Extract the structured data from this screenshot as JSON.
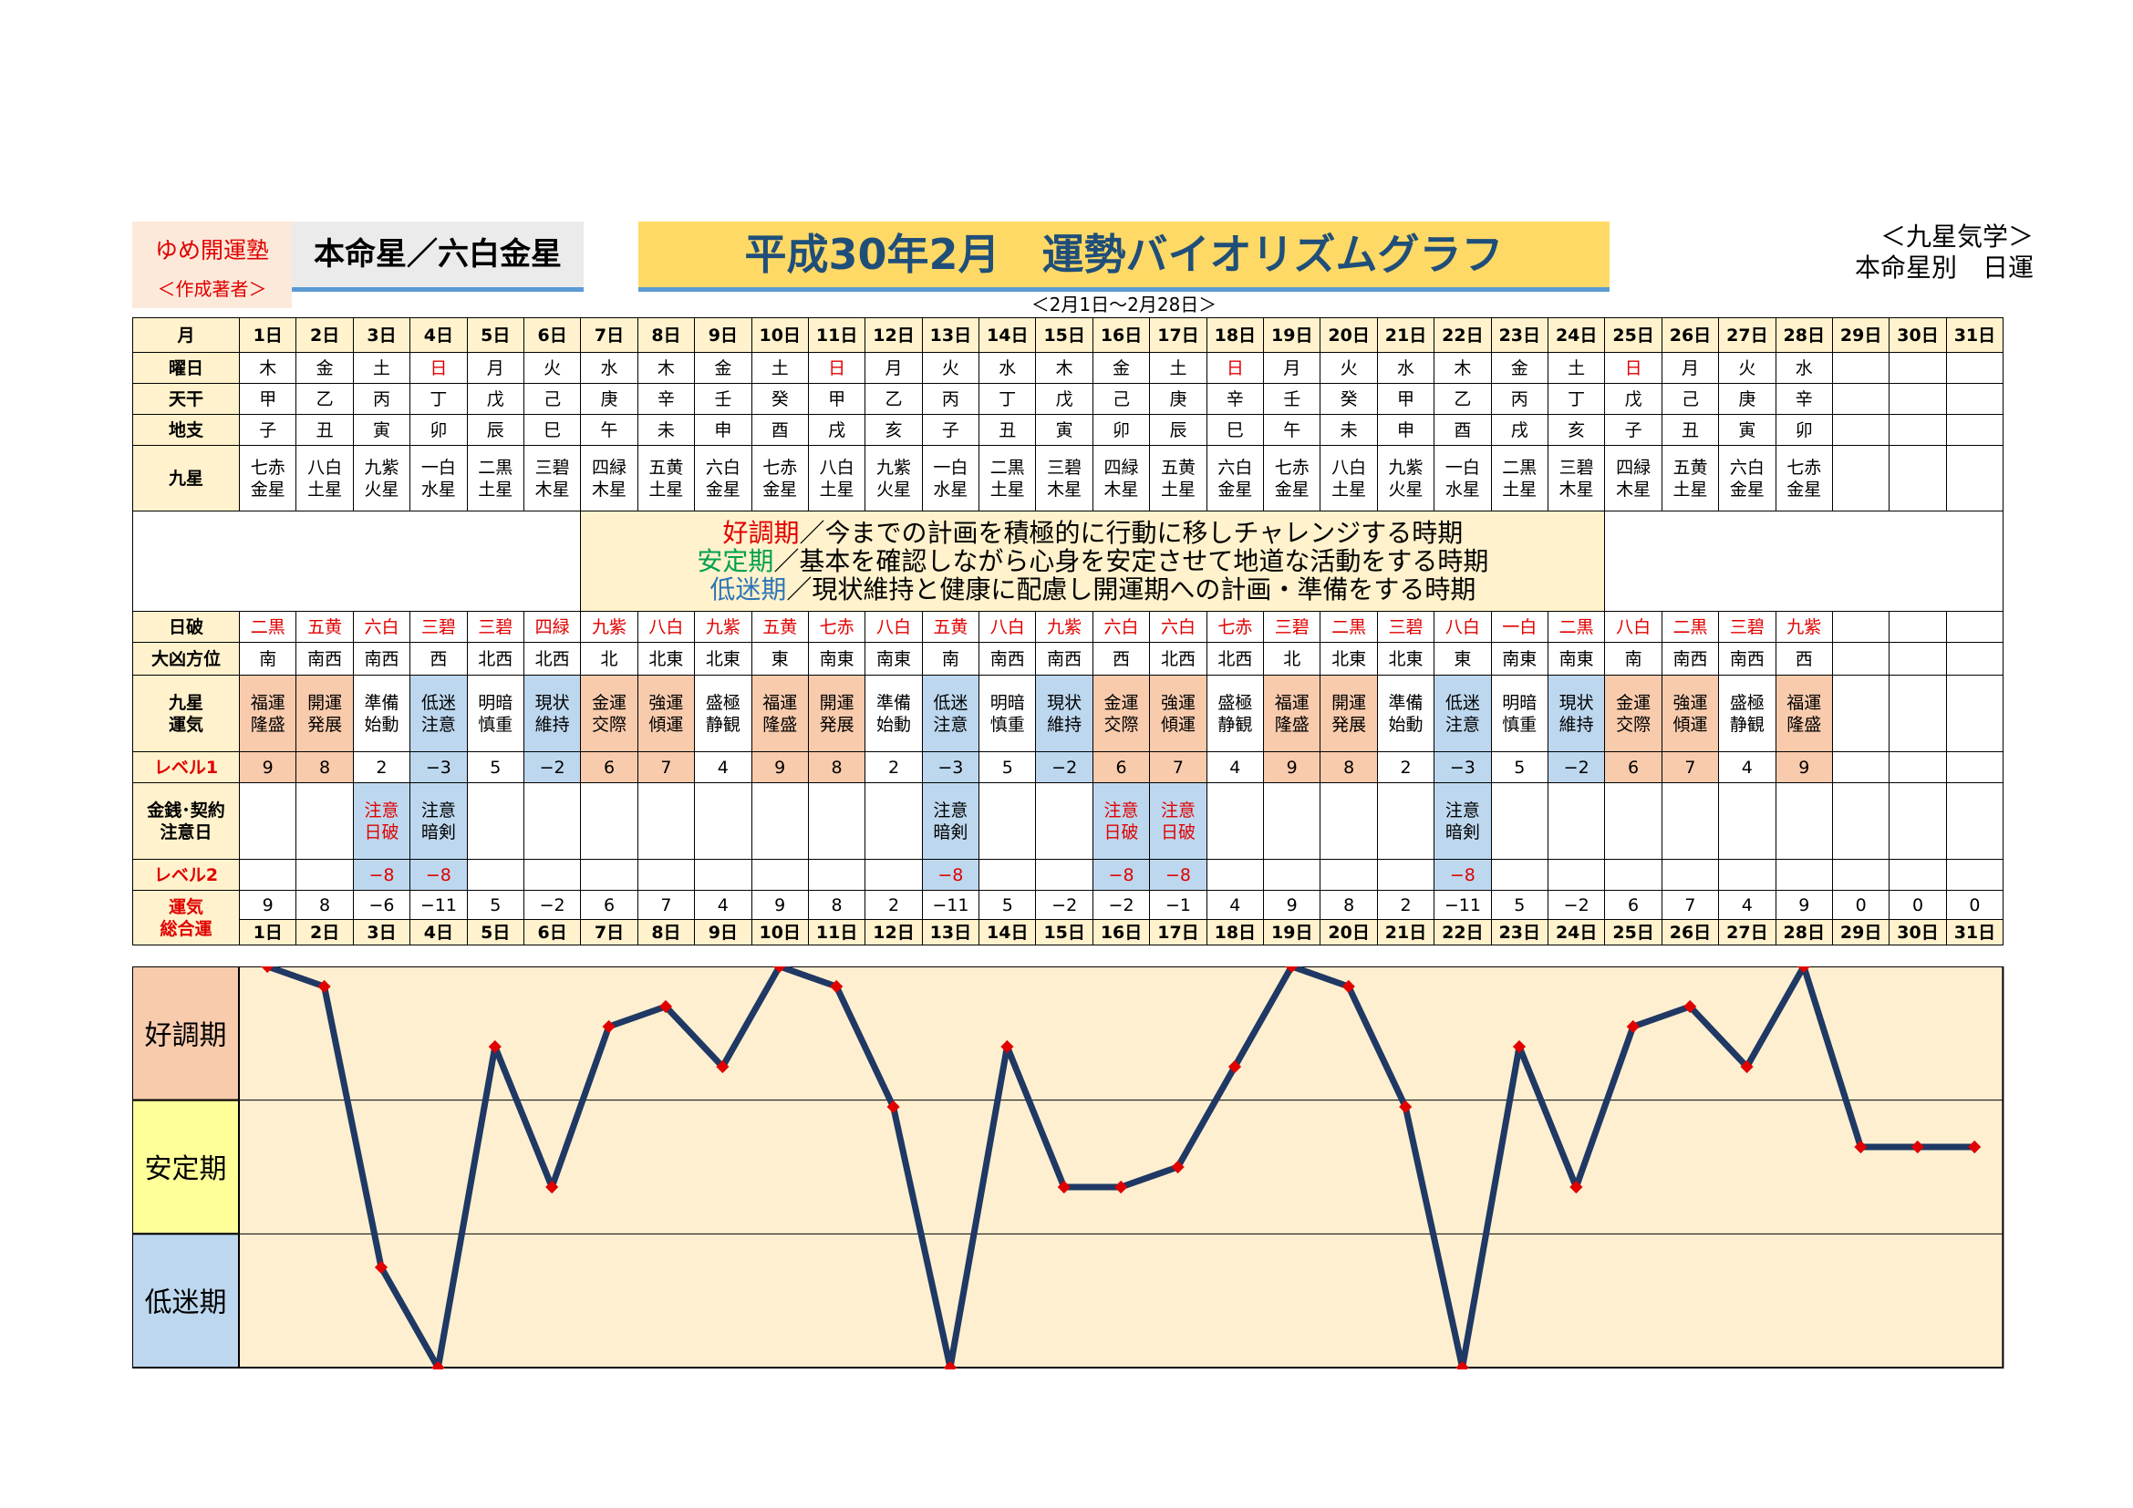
{
  "header": {
    "brand_line1": "ゆめ開運塾",
    "brand_line2": "＜作成著者＞",
    "honmei": "本命星／六白金星",
    "title": "平成30年2月　運勢バイオリズムグラフ",
    "date_range": "＜2月1日～2月28日＞",
    "kyusei_line1": "＜九星気学＞",
    "kyusei_line2": "本命星別　日運"
  },
  "row_labels": {
    "month": "月",
    "weekday": "曜日",
    "tenkan": "天干",
    "chishi": "地支",
    "kyusei": "九星",
    "nippa": "日破",
    "daikyo": "大凶方位",
    "unki": "九星\n運気",
    "level1": "レベル1",
    "kinsen": "金銭･契約\n注意日",
    "level2": "レベル2",
    "sogo": "運気\n総合運"
  },
  "legend": [
    {
      "key": "好調期",
      "text": "／今までの計画を積極的に行動に移しチャレンジする時期",
      "tone": "good"
    },
    {
      "key": "安定期",
      "text": "／基本を確認しながら心身を安定させて地道な活動をする時期",
      "tone": "stable"
    },
    {
      "key": "低迷期",
      "text": "／現状維持と健康に配慮し開運期への計画・準備をする時期",
      "tone": "low"
    }
  ],
  "days": [
    "1日",
    "2日",
    "3日",
    "4日",
    "5日",
    "6日",
    "7日",
    "8日",
    "9日",
    "10日",
    "11日",
    "12日",
    "13日",
    "14日",
    "15日",
    "16日",
    "17日",
    "18日",
    "19日",
    "20日",
    "21日",
    "22日",
    "23日",
    "24日",
    "25日",
    "26日",
    "27日",
    "28日",
    "29日",
    "30日",
    "31日"
  ],
  "weekday": [
    "木",
    "金",
    "土",
    "日",
    "月",
    "火",
    "水",
    "木",
    "金",
    "土",
    "日",
    "月",
    "火",
    "水",
    "木",
    "金",
    "土",
    "日",
    "月",
    "火",
    "水",
    "木",
    "金",
    "土",
    "日",
    "月",
    "火",
    "水",
    "",
    "",
    ""
  ],
  "tenkan": [
    "甲",
    "乙",
    "丙",
    "丁",
    "戊",
    "己",
    "庚",
    "辛",
    "壬",
    "癸",
    "甲",
    "乙",
    "丙",
    "丁",
    "戊",
    "己",
    "庚",
    "辛",
    "壬",
    "癸",
    "甲",
    "乙",
    "丙",
    "丁",
    "戊",
    "己",
    "庚",
    "辛",
    "",
    "",
    ""
  ],
  "chishi": [
    "子",
    "丑",
    "寅",
    "卯",
    "辰",
    "巳",
    "午",
    "未",
    "申",
    "酉",
    "戌",
    "亥",
    "子",
    "丑",
    "寅",
    "卯",
    "辰",
    "巳",
    "午",
    "未",
    "申",
    "酉",
    "戌",
    "亥",
    "子",
    "丑",
    "寅",
    "卯",
    "",
    "",
    ""
  ],
  "kyusei": [
    "七赤\n金星",
    "八白\n土星",
    "九紫\n火星",
    "一白\n水星",
    "二黒\n土星",
    "三碧\n木星",
    "四緑\n木星",
    "五黄\n土星",
    "六白\n金星",
    "七赤\n金星",
    "八白\n土星",
    "九紫\n火星",
    "一白\n水星",
    "二黒\n土星",
    "三碧\n木星",
    "四緑\n木星",
    "五黄\n土星",
    "六白\n金星",
    "七赤\n金星",
    "八白\n土星",
    "九紫\n火星",
    "一白\n水星",
    "二黒\n土星",
    "三碧\n木星",
    "四緑\n木星",
    "五黄\n土星",
    "六白\n金星",
    "七赤\n金星",
    "",
    "",
    ""
  ],
  "nippa": [
    "二黒",
    "五黄",
    "六白",
    "三碧",
    "三碧",
    "四緑",
    "九紫",
    "八白",
    "九紫",
    "五黄",
    "七赤",
    "八白",
    "五黄",
    "八白",
    "九紫",
    "六白",
    "六白",
    "七赤",
    "三碧",
    "二黒",
    "三碧",
    "八白",
    "一白",
    "二黒",
    "八白",
    "二黒",
    "三碧",
    "九紫",
    "",
    "",
    ""
  ],
  "daikyo": [
    "南",
    "南西",
    "南西",
    "西",
    "北西",
    "北西",
    "北",
    "北東",
    "北東",
    "東",
    "南東",
    "南東",
    "南",
    "南西",
    "南西",
    "西",
    "北西",
    "北西",
    "北",
    "北東",
    "北東",
    "東",
    "南東",
    "南東",
    "南",
    "南西",
    "南西",
    "西",
    "",
    "",
    ""
  ],
  "unki": [
    "福運\n隆盛",
    "開運\n発展",
    "準備\n始動",
    "低迷\n注意",
    "明暗\n慎重",
    "現状\n維持",
    "金運\n交際",
    "強運\n傾運",
    "盛極\n静観",
    "福運\n隆盛",
    "開運\n発展",
    "準備\n始動",
    "低迷\n注意",
    "明暗\n慎重",
    "現状\n維持",
    "金運\n交際",
    "強運\n傾運",
    "盛極\n静観",
    "福運\n隆盛",
    "開運\n発展",
    "準備\n始動",
    "低迷\n注意",
    "明暗\n慎重",
    "現状\n維持",
    "金運\n交際",
    "強運\n傾運",
    "盛極\n静観",
    "福運\n隆盛",
    "",
    "",
    ""
  ],
  "level1": [
    "9",
    "8",
    "2",
    "−3",
    "5",
    "−2",
    "6",
    "7",
    "4",
    "9",
    "8",
    "2",
    "−3",
    "5",
    "−2",
    "6",
    "7",
    "4",
    "9",
    "8",
    "2",
    "−3",
    "5",
    "−2",
    "6",
    "7",
    "4",
    "9",
    "",
    "",
    ""
  ],
  "kinsen": [
    "",
    "",
    "注意\n日破",
    "注意\n暗剣",
    "",
    "",
    "",
    "",
    "",
    "",
    "",
    "",
    "注意\n暗剣",
    "",
    "",
    "注意\n日破",
    "注意\n日破",
    "",
    "",
    "",
    "",
    "注意\n暗剣",
    "",
    "",
    "",
    "",
    "",
    "",
    "",
    "",
    ""
  ],
  "level2": [
    "",
    "",
    "−8",
    "−8",
    "",
    "",
    "",
    "",
    "",
    "",
    "",
    "",
    "−8",
    "",
    "",
    "−8",
    "−8",
    "",
    "",
    "",
    "",
    "−8",
    "",
    "",
    "",
    "",
    "",
    "",
    "",
    "",
    ""
  ],
  "sogo": [
    "9",
    "8",
    "−6",
    "−11",
    "5",
    "−2",
    "6",
    "7",
    "4",
    "9",
    "8",
    "2",
    "−11",
    "5",
    "−2",
    "−2",
    "−1",
    "4",
    "9",
    "8",
    "2",
    "−11",
    "5",
    "−2",
    "6",
    "7",
    "4",
    "9",
    "0",
    "0",
    "0"
  ],
  "band_labels": [
    "好調期",
    "安定期",
    "低迷期"
  ],
  "colors": {
    "good": "#f8cbad",
    "low": "#bdd7ee",
    "header": "#fff2cc",
    "line": "#1f3864",
    "marker": "#e00000",
    "title_bg": "#ffd966"
  },
  "chart_data": {
    "type": "line",
    "categories": [
      "1日",
      "2日",
      "3日",
      "4日",
      "5日",
      "6日",
      "7日",
      "8日",
      "9日",
      "10日",
      "11日",
      "12日",
      "13日",
      "14日",
      "15日",
      "16日",
      "17日",
      "18日",
      "19日",
      "20日",
      "21日",
      "22日",
      "23日",
      "24日",
      "25日",
      "26日",
      "27日",
      "28日",
      "29日",
      "30日",
      "31日"
    ],
    "values": [
      9,
      8,
      -6,
      -11,
      5,
      -2,
      6,
      7,
      4,
      9,
      8,
      2,
      -11,
      5,
      -2,
      -2,
      -1,
      4,
      9,
      8,
      2,
      -11,
      5,
      -2,
      6,
      7,
      4,
      9,
      0,
      0,
      0
    ],
    "ylim": [
      -11,
      9
    ],
    "bands": [
      "好調期",
      "安定期",
      "低迷期"
    ],
    "grid": true
  }
}
